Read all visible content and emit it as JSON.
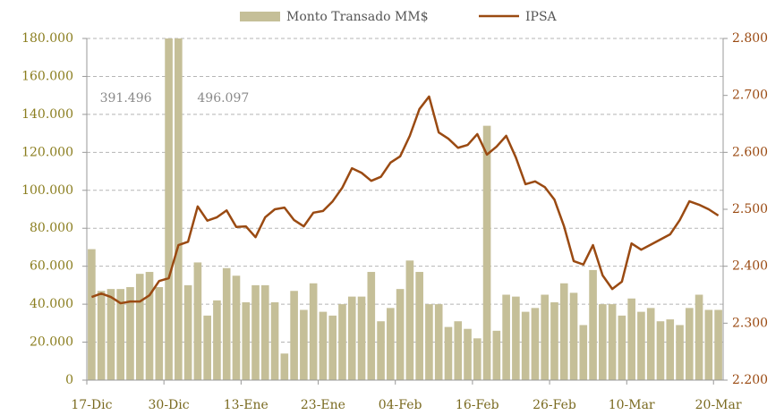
{
  "chart_data": {
    "type": "bar",
    "categories": [
      "17-Dic",
      null,
      null,
      null,
      null,
      null,
      null,
      null,
      "30-Dic",
      null,
      null,
      null,
      null,
      null,
      null,
      null,
      "13-Ene",
      null,
      null,
      null,
      null,
      null,
      null,
      null,
      "23-Ene",
      null,
      null,
      null,
      null,
      null,
      null,
      null,
      "04-Feb",
      null,
      null,
      null,
      null,
      null,
      null,
      null,
      "16-Feb",
      null,
      null,
      null,
      null,
      null,
      null,
      null,
      "26-Feb",
      null,
      null,
      null,
      null,
      null,
      null,
      null,
      "10-Mar",
      null,
      null,
      null,
      null,
      null,
      null,
      null,
      null,
      "20-Mar"
    ],
    "series": [
      {
        "name": "Monto Transado MM$",
        "type": "bar",
        "color": "#c5bf98",
        "values": [
          69000,
          47000,
          48000,
          48000,
          49000,
          56000,
          57000,
          49000,
          391496,
          496097,
          50000,
          62000,
          34000,
          42000,
          59000,
          55000,
          41000,
          50000,
          50000,
          41000,
          14000,
          47000,
          37000,
          51000,
          36000,
          34000,
          40000,
          44000,
          44000,
          57000,
          31000,
          38000,
          48000,
          63000,
          57000,
          40000,
          40000,
          28000,
          31000,
          27000,
          22000,
          134000,
          26000,
          45000,
          44000,
          36000,
          38000,
          45000,
          41000,
          51000,
          46000,
          29000,
          58000,
          40000,
          40000,
          34000,
          43000,
          36000,
          38000,
          31000,
          32000,
          29000,
          38000,
          45000,
          37000,
          37000
        ],
        "value_labels": [
          null,
          null,
          null,
          null,
          null,
          null,
          null,
          null,
          "391.496",
          "496.097",
          null,
          null,
          null,
          null,
          null,
          null,
          null,
          null,
          null,
          null,
          null,
          null,
          null,
          null,
          null,
          null,
          null,
          null,
          null,
          null,
          null,
          null,
          null,
          null,
          null,
          null,
          null,
          null,
          null,
          null,
          null,
          null,
          null,
          null,
          null,
          null,
          null,
          null,
          null,
          null,
          null,
          null,
          null,
          null,
          null,
          null,
          null,
          null,
          null,
          null,
          null,
          null,
          null,
          null,
          null,
          null
        ]
      },
      {
        "name": "IPSA",
        "type": "line",
        "axis": "y2",
        "color": "#9a4a12",
        "values": [
          2346,
          2352,
          2346,
          2335,
          2338,
          2338,
          2349,
          2374,
          2379,
          2437,
          2443,
          2505,
          2480,
          2486,
          2498,
          2469,
          2470,
          2451,
          2486,
          2500,
          2503,
          2481,
          2470,
          2494,
          2497,
          2514,
          2538,
          2572,
          2564,
          2550,
          2557,
          2582,
          2593,
          2629,
          2676,
          2698,
          2635,
          2624,
          2608,
          2613,
          2632,
          2596,
          2610,
          2629,
          2591,
          2544,
          2549,
          2539,
          2517,
          2470,
          2409,
          2403,
          2437,
          2384,
          2360,
          2373,
          2440,
          2429,
          2438,
          2447,
          2456,
          2481,
          2514,
          2508,
          2500,
          2489
        ]
      }
    ],
    "ylim": [
      0,
      180000
    ],
    "yticks": [
      {
        "value": 0,
        "label": "0"
      },
      {
        "value": 20000,
        "label": "20.000"
      },
      {
        "value": 40000,
        "label": "40.000"
      },
      {
        "value": 60000,
        "label": "60.000"
      },
      {
        "value": 80000,
        "label": "80.000"
      },
      {
        "value": 100000,
        "label": "100.000"
      },
      {
        "value": 120000,
        "label": "120.000"
      },
      {
        "value": 140000,
        "label": "140.000"
      },
      {
        "value": 160000,
        "label": "160.000"
      },
      {
        "value": 180000,
        "label": "180.000"
      }
    ],
    "y2lim": [
      2200,
      2800
    ],
    "y2ticks": [
      {
        "value": 2200,
        "label": "2.200"
      },
      {
        "value": 2300,
        "label": "2.300"
      },
      {
        "value": 2400,
        "label": "2.400"
      },
      {
        "value": 2500,
        "label": "2.500"
      },
      {
        "value": 2600,
        "label": "2.600"
      },
      {
        "value": 2700,
        "label": "2.700"
      },
      {
        "value": 2800,
        "label": "2.800"
      }
    ],
    "grid": true,
    "legend": "top"
  }
}
